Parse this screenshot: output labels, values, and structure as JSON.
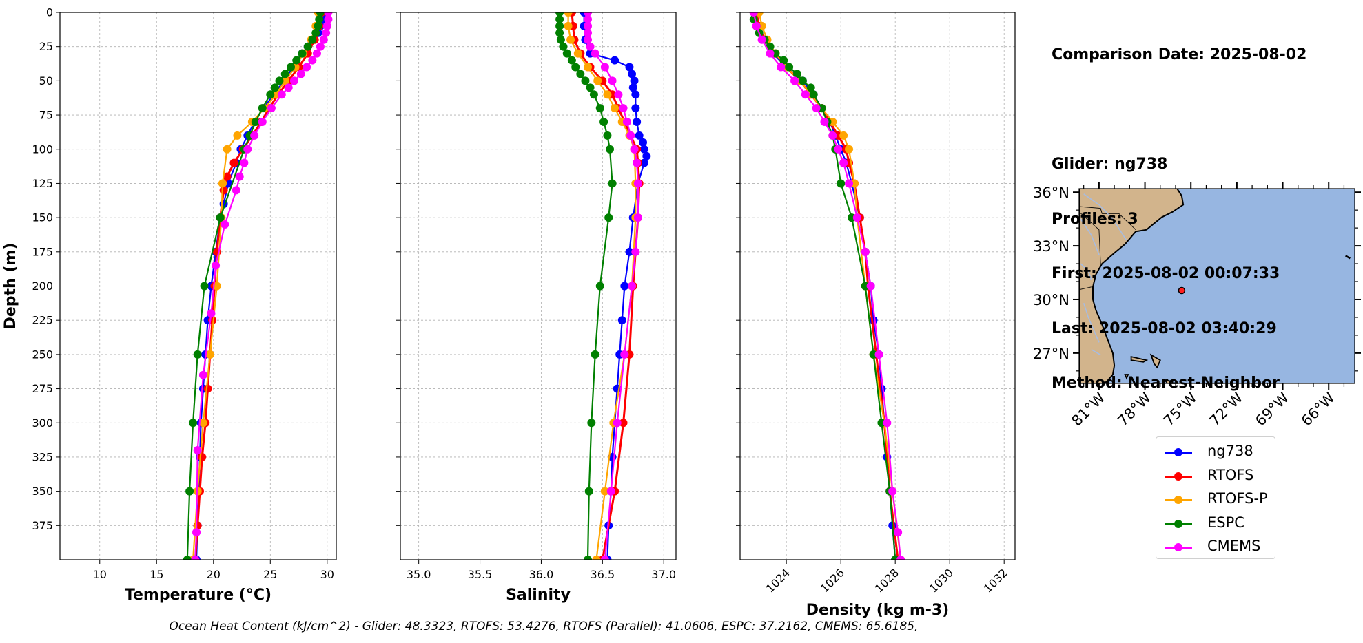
{
  "info": {
    "comparison_date": "Comparison Date: 2025-08-02",
    "glider": "Glider: ng738",
    "profiles": "Profiles: 3",
    "first": "First: 2025-08-02 00:07:33",
    "last": "Last: 2025-08-02 03:40:29",
    "method": "Method: Nearest-Neighbor"
  },
  "footer": "Ocean Heat Content (kJ/cm^2) - Glider: 48.3323,  RTOFS: 53.4276,  RTOFS (Parallel): 41.0606,  ESPC: 37.2162,  CMEMS: 65.6185,",
  "chart_data": [
    {
      "type": "line",
      "xlabel": "Temperature (°C)",
      "ylabel": "Depth (m)",
      "xlim": [
        6.5,
        30.8
      ],
      "ylim": [
        400,
        0
      ],
      "xticks": [
        10,
        15,
        20,
        25,
        30
      ],
      "yticks": [
        0,
        25,
        50,
        75,
        100,
        125,
        150,
        175,
        200,
        225,
        250,
        275,
        300,
        325,
        350,
        375
      ],
      "grid": true,
      "series": [
        {
          "name": "ng738",
          "color": "#0000ff",
          "depth": [
            0,
            5,
            10,
            15,
            20,
            25,
            30,
            40,
            50,
            60,
            70,
            80,
            90,
            100,
            110,
            125,
            140,
            150,
            175,
            200,
            225,
            250,
            275,
            300,
            325,
            350,
            375,
            400
          ],
          "values": [
            29.7,
            29.6,
            29.4,
            29.2,
            28.8,
            28.3,
            27.8,
            27.0,
            26.2,
            25.3,
            24.4,
            23.6,
            23.0,
            22.4,
            22.0,
            21.3,
            20.9,
            20.6,
            20.2,
            19.8,
            19.5,
            19.3,
            19.1,
            18.9,
            18.8,
            18.7,
            18.6,
            18.5
          ]
        },
        {
          "name": "RTOFS",
          "color": "#ff0000",
          "depth": [
            0,
            10,
            20,
            30,
            40,
            50,
            60,
            70,
            80,
            90,
            100,
            110,
            120,
            130,
            150,
            175,
            200,
            225,
            250,
            275,
            300,
            325,
            350,
            375,
            400
          ],
          "values": [
            29.5,
            29.3,
            28.9,
            28.3,
            27.5,
            26.6,
            25.7,
            24.9,
            24.2,
            23.4,
            22.6,
            21.8,
            21.2,
            20.9,
            20.6,
            20.3,
            20.1,
            19.9,
            19.7,
            19.5,
            19.3,
            19.0,
            18.8,
            18.6,
            18.4
          ]
        },
        {
          "name": "RTOFS-P",
          "color": "#ffa500",
          "depth": [
            0,
            10,
            20,
            30,
            40,
            50,
            60,
            70,
            80,
            90,
            100,
            125,
            150,
            200,
            250,
            300,
            350,
            400
          ],
          "values": [
            29.2,
            29.0,
            28.6,
            27.9,
            27.2,
            26.3,
            25.5,
            24.5,
            23.4,
            22.1,
            21.2,
            20.8,
            20.7,
            20.3,
            19.7,
            19.1,
            18.6,
            18.2
          ]
        },
        {
          "name": "ESPC",
          "color": "#008000",
          "depth": [
            0,
            5,
            10,
            15,
            20,
            25,
            30,
            35,
            40,
            45,
            50,
            55,
            60,
            70,
            80,
            90,
            100,
            150,
            200,
            250,
            300,
            350,
            400
          ],
          "values": [
            29.4,
            29.3,
            29.2,
            29.0,
            28.7,
            28.3,
            27.8,
            27.3,
            26.8,
            26.3,
            25.8,
            25.4,
            25.0,
            24.3,
            23.7,
            23.2,
            22.7,
            20.6,
            19.2,
            18.6,
            18.2,
            17.9,
            17.7
          ]
        },
        {
          "name": "CMEMS",
          "color": "#ff00ff",
          "depth": [
            0,
            5,
            10,
            15,
            20,
            25,
            30,
            35,
            40,
            45,
            50,
            55,
            60,
            70,
            80,
            90,
            100,
            110,
            120,
            130,
            155,
            185,
            220,
            265,
            320,
            380,
            400
          ],
          "values": [
            30.1,
            30.1,
            30.0,
            29.9,
            29.7,
            29.4,
            29.1,
            28.7,
            28.2,
            27.7,
            27.1,
            26.6,
            26.0,
            25.1,
            24.3,
            23.6,
            23.0,
            22.7,
            22.3,
            22.0,
            21.0,
            20.2,
            19.8,
            19.1,
            18.6,
            18.5,
            18.4
          ]
        }
      ]
    },
    {
      "type": "line",
      "xlabel": "Salinity",
      "xlim": [
        34.85,
        37.1
      ],
      "ylim": [
        400,
        0
      ],
      "xticks": [
        35.0,
        35.5,
        36.0,
        36.5,
        37.0
      ],
      "yticks": [
        0,
        25,
        50,
        75,
        100,
        125,
        150,
        175,
        200,
        225,
        250,
        275,
        300,
        325,
        350,
        375
      ],
      "grid": true,
      "series": [
        {
          "name": "ng738",
          "color": "#0000ff",
          "depth": [
            0,
            10,
            20,
            30,
            35,
            40,
            45,
            50,
            55,
            60,
            70,
            80,
            90,
            95,
            100,
            105,
            110,
            125,
            150,
            175,
            200,
            225,
            250,
            275,
            300,
            325,
            350,
            375,
            400
          ],
          "values": [
            36.35,
            36.35,
            36.36,
            36.4,
            36.6,
            36.72,
            36.74,
            36.76,
            36.75,
            36.77,
            36.77,
            36.78,
            36.8,
            36.83,
            36.84,
            36.86,
            36.84,
            36.79,
            36.75,
            36.72,
            36.68,
            36.66,
            36.64,
            36.62,
            36.6,
            36.58,
            36.57,
            36.55,
            36.54
          ]
        },
        {
          "name": "RTOFS",
          "color": "#ff0000",
          "depth": [
            0,
            10,
            20,
            30,
            40,
            50,
            60,
            70,
            80,
            90,
            100,
            110,
            125,
            150,
            175,
            200,
            250,
            300,
            350,
            400
          ],
          "values": [
            36.25,
            36.26,
            36.27,
            36.32,
            36.4,
            36.5,
            36.58,
            36.63,
            36.68,
            36.73,
            36.78,
            36.79,
            36.8,
            36.79,
            36.77,
            36.75,
            36.72,
            36.67,
            36.6,
            36.5
          ]
        },
        {
          "name": "RTOFS-P",
          "color": "#ffa500",
          "depth": [
            0,
            10,
            20,
            30,
            40,
            50,
            60,
            70,
            80,
            90,
            100,
            125,
            150,
            200,
            250,
            300,
            350,
            400
          ],
          "values": [
            36.22,
            36.22,
            36.24,
            36.3,
            36.38,
            36.46,
            36.54,
            36.6,
            36.66,
            36.72,
            36.76,
            36.77,
            36.77,
            36.74,
            36.68,
            36.59,
            36.52,
            36.45
          ]
        },
        {
          "name": "ESPC",
          "color": "#008000",
          "depth": [
            0,
            5,
            10,
            15,
            20,
            25,
            30,
            35,
            40,
            45,
            50,
            55,
            60,
            70,
            80,
            90,
            100,
            125,
            150,
            200,
            250,
            300,
            350,
            400
          ],
          "values": [
            36.15,
            36.15,
            36.15,
            36.15,
            36.16,
            36.18,
            36.21,
            36.25,
            36.28,
            36.32,
            36.36,
            36.4,
            36.43,
            36.48,
            36.51,
            36.54,
            36.56,
            36.58,
            36.55,
            36.48,
            36.44,
            36.41,
            36.39,
            36.38
          ]
        },
        {
          "name": "CMEMS",
          "color": "#ff00ff",
          "depth": [
            0,
            5,
            10,
            15,
            20,
            25,
            30,
            40,
            50,
            60,
            70,
            80,
            90,
            100,
            110,
            125,
            150,
            175,
            200,
            250,
            300,
            350,
            400
          ],
          "values": [
            36.38,
            36.38,
            36.38,
            36.38,
            36.38,
            36.4,
            36.44,
            36.52,
            36.58,
            36.63,
            36.67,
            36.7,
            36.73,
            36.76,
            36.78,
            36.79,
            36.79,
            36.77,
            36.74,
            36.68,
            36.62,
            36.57,
            36.52
          ]
        }
      ]
    },
    {
      "type": "line",
      "xlabel": "Density (kg m-3)",
      "xlim": [
        1022.3,
        1032.4
      ],
      "ylim": [
        400,
        0
      ],
      "xticks": [
        1024,
        1026,
        1028,
        1030,
        1032
      ],
      "yticks": [
        0,
        25,
        50,
        75,
        100,
        125,
        150,
        175,
        200,
        225,
        250,
        275,
        300,
        325,
        350,
        375
      ],
      "grid": true,
      "series": [
        {
          "name": "ng738",
          "color": "#0000ff",
          "depth": [
            0,
            10,
            20,
            30,
            40,
            50,
            60,
            70,
            80,
            90,
            100,
            110,
            125,
            150,
            175,
            200,
            225,
            250,
            275,
            300,
            325,
            350,
            375,
            400
          ],
          "values": [
            1022.9,
            1023.0,
            1023.2,
            1023.5,
            1024.0,
            1024.6,
            1025.0,
            1025.3,
            1025.6,
            1025.8,
            1026.0,
            1026.2,
            1026.4,
            1026.7,
            1026.9,
            1027.1,
            1027.2,
            1027.4,
            1027.5,
            1027.6,
            1027.7,
            1027.8,
            1027.9,
            1028.0
          ]
        },
        {
          "name": "RTOFS",
          "color": "#ff0000",
          "depth": [
            0,
            10,
            20,
            30,
            40,
            50,
            60,
            70,
            80,
            90,
            100,
            110,
            125,
            150,
            175,
            200,
            250,
            300,
            350,
            400
          ],
          "values": [
            1022.9,
            1023.0,
            1023.2,
            1023.6,
            1024.0,
            1024.5,
            1024.9,
            1025.3,
            1025.6,
            1025.9,
            1026.2,
            1026.3,
            1026.5,
            1026.7,
            1026.9,
            1027.0,
            1027.3,
            1027.6,
            1027.8,
            1028.1
          ]
        },
        {
          "name": "RTOFS-P",
          "color": "#ffa500",
          "depth": [
            0,
            10,
            20,
            30,
            40,
            50,
            60,
            70,
            80,
            90,
            100,
            125,
            150,
            200,
            250,
            300,
            350,
            400
          ],
          "values": [
            1023.0,
            1023.1,
            1023.3,
            1023.6,
            1024.0,
            1024.5,
            1024.9,
            1025.3,
            1025.7,
            1026.1,
            1026.3,
            1026.5,
            1026.6,
            1026.9,
            1027.2,
            1027.6,
            1027.9,
            1028.2
          ]
        },
        {
          "name": "ESPC",
          "color": "#008000",
          "depth": [
            0,
            5,
            10,
            15,
            20,
            25,
            30,
            35,
            40,
            45,
            50,
            55,
            60,
            70,
            80,
            90,
            100,
            125,
            150,
            200,
            250,
            300,
            350,
            400
          ],
          "values": [
            1022.8,
            1022.8,
            1022.9,
            1023.0,
            1023.2,
            1023.4,
            1023.6,
            1023.9,
            1024.1,
            1024.4,
            1024.6,
            1024.9,
            1025.0,
            1025.3,
            1025.5,
            1025.7,
            1025.8,
            1026.0,
            1026.4,
            1026.9,
            1027.2,
            1027.5,
            1027.8,
            1028.0
          ]
        },
        {
          "name": "CMEMS",
          "color": "#ff00ff",
          "depth": [
            0,
            10,
            20,
            30,
            40,
            50,
            60,
            70,
            80,
            90,
            100,
            110,
            125,
            150,
            175,
            200,
            250,
            300,
            350,
            380,
            400
          ],
          "values": [
            1022.8,
            1022.9,
            1023.1,
            1023.4,
            1023.8,
            1024.3,
            1024.7,
            1025.1,
            1025.4,
            1025.7,
            1025.9,
            1026.1,
            1026.3,
            1026.6,
            1026.9,
            1027.1,
            1027.4,
            1027.7,
            1027.9,
            1028.1,
            1028.2
          ]
        }
      ]
    }
  ],
  "map": {
    "lat_ticks": [
      "36°N",
      "33°N",
      "30°N",
      "27°N"
    ],
    "lon_ticks": [
      "81°W",
      "78°W",
      "75°W",
      "72°W",
      "69°W",
      "66°W"
    ],
    "lat_tick_values": [
      36,
      33,
      30,
      27
    ],
    "lon_tick_values": [
      -81,
      -78,
      -75,
      -72,
      -69,
      -66
    ],
    "lat_range": [
      25.3,
      36.2
    ],
    "lon_range": [
      -82.3,
      -64.3
    ],
    "glider_position": {
      "lat": 30.5,
      "lon": -75.6
    },
    "ocean_color": "#97b6e1",
    "land_color": "#d2b48c"
  },
  "legend": [
    {
      "name": "ng738",
      "color": "#0000ff"
    },
    {
      "name": "RTOFS",
      "color": "#ff0000"
    },
    {
      "name": "RTOFS-P",
      "color": "#ffa500"
    },
    {
      "name": "ESPC",
      "color": "#008000"
    },
    {
      "name": "CMEMS",
      "color": "#ff00ff"
    }
  ]
}
